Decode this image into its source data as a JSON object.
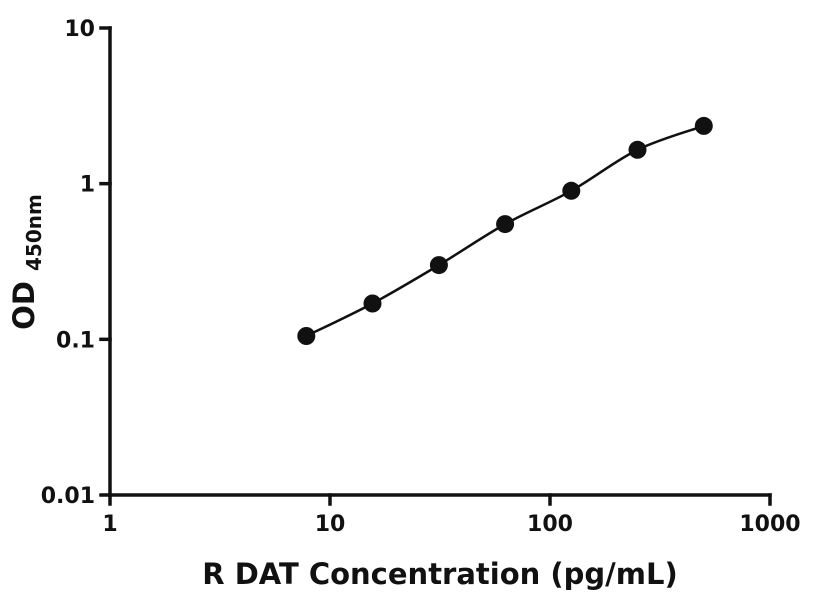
{
  "chart_data": {
    "type": "scatter",
    "x": [
      7.8,
      15.6,
      31.25,
      62.5,
      125,
      250,
      500
    ],
    "y": [
      0.105,
      0.17,
      0.3,
      0.55,
      0.9,
      1.65,
      2.35
    ],
    "xlabel": "R DAT Concentration (pg/mL)",
    "ylabel": "OD",
    "ylabel_subscript": "450nm",
    "xscale": "log",
    "yscale": "log",
    "xlim": [
      1,
      1000
    ],
    "ylim": [
      0.01,
      10
    ],
    "x_ticks": [
      {
        "value": 1,
        "label": "1"
      },
      {
        "value": 10,
        "label": "10"
      },
      {
        "value": 100,
        "label": "100"
      },
      {
        "value": 1000,
        "label": "1000"
      }
    ],
    "y_ticks": [
      {
        "value": 0.01,
        "label": "0.01"
      },
      {
        "value": 0.1,
        "label": "0.1"
      },
      {
        "value": 1,
        "label": "1"
      },
      {
        "value": 10,
        "label": "10"
      }
    ],
    "grid": false,
    "legend": "none",
    "line": true,
    "line_color": "#111111",
    "marker_color": "#111111",
    "marker_radius": 9
  }
}
